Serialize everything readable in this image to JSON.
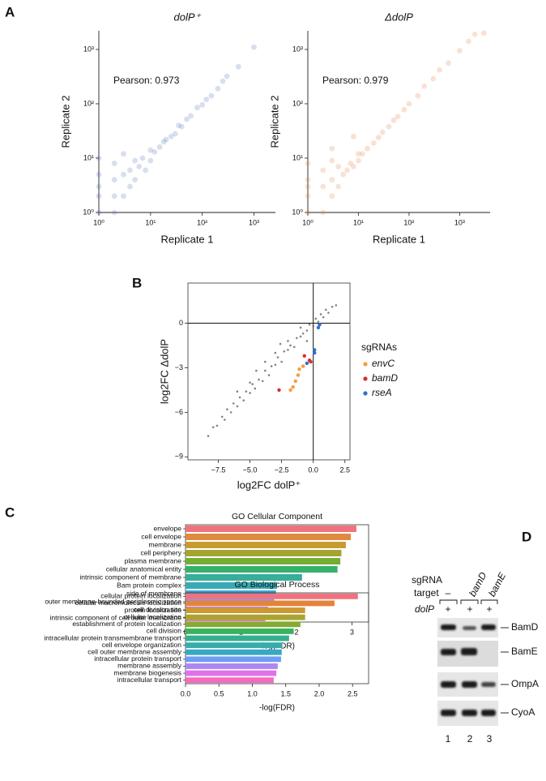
{
  "panel_labels": [
    "A",
    "B",
    "C",
    "D"
  ],
  "chart_data": [
    {
      "type": "scatter",
      "title": "dolP⁺",
      "xlabel": "Replicate 1",
      "ylabel": "Replicate 2",
      "annotation": "Pearson: 0.973",
      "color": "#4a6fb5",
      "log_x": true,
      "log_y": true,
      "xlim": [
        1,
        2600
      ],
      "ylim": [
        1,
        2200
      ],
      "xticks": [
        {
          "value": 1,
          "label": "10⁰"
        },
        {
          "value": 10,
          "label": "10¹"
        },
        {
          "value": 100,
          "label": "10²"
        },
        {
          "value": 1000,
          "label": "10³"
        }
      ],
      "yticks": [
        {
          "value": 1,
          "label": "10⁰"
        },
        {
          "value": 10,
          "label": "10¹"
        },
        {
          "value": 100,
          "label": "10²"
        },
        {
          "value": 1000,
          "label": "10³"
        }
      ],
      "x": [
        1,
        1,
        1,
        1,
        1,
        2,
        2,
        2,
        2,
        3,
        3,
        3,
        4,
        4,
        5,
        5,
        6,
        7,
        8,
        10,
        10,
        12,
        15,
        18,
        20,
        25,
        30,
        35,
        40,
        50,
        60,
        80,
        100,
        120,
        150,
        200,
        250,
        300,
        500,
        1000
      ],
      "values": [
        1,
        2,
        3,
        5,
        10,
        1,
        2,
        4,
        8,
        2,
        5,
        12,
        3,
        6,
        4,
        9,
        7,
        10,
        6,
        9,
        14,
        13,
        16,
        20,
        22,
        25,
        28,
        40,
        38,
        52,
        60,
        85,
        95,
        120,
        140,
        190,
        260,
        320,
        480,
        1100
      ]
    },
    {
      "type": "scatter",
      "title": "ΔdolP",
      "xlabel": "Replicate 1",
      "ylabel": "Replicate 2",
      "annotation": "Pearson: 0.979",
      "color": "#e07a3c",
      "log_x": true,
      "log_y": true,
      "xlim": [
        1,
        4000
      ],
      "ylim": [
        1,
        2200
      ],
      "xticks": [
        {
          "value": 1,
          "label": "10⁰"
        },
        {
          "value": 10,
          "label": "10¹"
        },
        {
          "value": 100,
          "label": "10²"
        },
        {
          "value": 1000,
          "label": "10³"
        }
      ],
      "yticks": [
        {
          "value": 1,
          "label": "10⁰"
        },
        {
          "value": 10,
          "label": "10¹"
        },
        {
          "value": 100,
          "label": "10²"
        },
        {
          "value": 1000,
          "label": "10³"
        }
      ],
      "x": [
        1,
        1,
        1,
        1,
        1,
        2,
        2,
        2,
        3,
        3,
        3,
        4,
        4,
        5,
        6,
        7,
        8,
        10,
        10,
        12,
        15,
        20,
        25,
        30,
        40,
        50,
        60,
        80,
        100,
        150,
        200,
        300,
        400,
        600,
        1000,
        1500,
        2000,
        3000,
        3,
        8
      ],
      "values": [
        1,
        2,
        3,
        4,
        8,
        1,
        3,
        6,
        2,
        4,
        9,
        3,
        7,
        5,
        6,
        8,
        7,
        9,
        12,
        12,
        15,
        19,
        24,
        30,
        38,
        50,
        58,
        78,
        100,
        140,
        210,
        290,
        420,
        560,
        950,
        1400,
        1900,
        2000,
        15,
        25
      ]
    },
    {
      "type": "scatter",
      "xlabel": "log2FC dolP⁺",
      "ylabel": "log2FC ΔdolP",
      "color": "#666666",
      "xlim": [
        -9.9,
        2.9
      ],
      "ylim": [
        -9.2,
        2.7
      ],
      "hline": 0,
      "vline": 0,
      "xticks": [
        {
          "value": -7.5,
          "label": "−7.5"
        },
        {
          "value": -5,
          "label": "−5.0"
        },
        {
          "value": -2.5,
          "label": "−2.5"
        },
        {
          "value": 0,
          "label": "0.0"
        },
        2.5
      ],
      "yticks": [
        0,
        {
          "value": -3,
          "label": "−3"
        },
        {
          "value": -6,
          "label": "−6"
        },
        {
          "value": -9,
          "label": "−9"
        }
      ],
      "x": [
        -8.3,
        -7.9,
        -7.6,
        -7.2,
        -7.0,
        -6.8,
        -6.5,
        -6.3,
        -6.0,
        -5.8,
        -5.5,
        -5.3,
        -5.0,
        -4.8,
        -4.6,
        -4.3,
        -4.0,
        -3.8,
        -3.5,
        -3.3,
        -3.0,
        -2.8,
        -2.5,
        -2.3,
        -2.0,
        -1.8,
        -1.5,
        -1.3,
        -1.0,
        -0.8,
        -0.5,
        -0.3,
        0.0,
        0.2,
        0.4,
        0.6,
        0.8,
        1.0,
        1.2,
        1.5,
        1.8,
        -6.0,
        -4.5,
        -3.0,
        -2.0,
        -1.0,
        -5.0,
        -3.8,
        -2.6,
        -0.5
      ],
      "values": [
        -7.6,
        -7.0,
        -6.9,
        -6.3,
        -6.5,
        -5.8,
        -6.0,
        -5.4,
        -5.6,
        -5.0,
        -5.2,
        -4.6,
        -4.7,
        -4.1,
        -4.4,
        -3.8,
        -3.9,
        -3.2,
        -3.5,
        -2.9,
        -2.8,
        -2.3,
        -2.6,
        -1.9,
        -1.8,
        -1.5,
        -1.6,
        -1.0,
        -0.9,
        -0.7,
        -0.5,
        -0.1,
        -0.2,
        0.3,
        0.1,
        0.6,
        0.4,
        0.9,
        0.7,
        1.1,
        1.2,
        -4.6,
        -3.2,
        -2.0,
        -1.2,
        -0.3,
        -4.0,
        -2.6,
        -1.4,
        -1.2
      ],
      "legend_title": "sgRNAs",
      "series": [
        {
          "name": "envC",
          "color": "#f39c3c",
          "x": [
            -1.1,
            -1.2,
            -1.4,
            -1.6,
            -1.8,
            -0.8
          ],
          "values": [
            -3.1,
            -3.5,
            -3.9,
            -4.3,
            -4.5,
            -2.9
          ]
        },
        {
          "name": "bamD",
          "color": "#d62f2f",
          "x": [
            -2.7,
            -0.7,
            -0.3,
            -0.2
          ],
          "values": [
            -4.5,
            -2.2,
            -2.5,
            -2.6
          ]
        },
        {
          "name": "rseA",
          "color": "#2f6fc9",
          "x": [
            0.5,
            0.4,
            0.1,
            0.1,
            -0.5
          ],
          "values": [
            -0.1,
            -0.3,
            -1.8,
            -2.0,
            -2.7
          ]
        }
      ]
    },
    {
      "type": "hbar",
      "title": "GO Cellular Component",
      "xlabel": "-log(FDR)",
      "xlim": [
        0,
        3.3
      ],
      "xticks": [
        0,
        1,
        2,
        3
      ],
      "categories": [
        "envelope",
        "cell envelope",
        "membrane",
        "cell periphery",
        "plasma membrane",
        "cellular anatomical entity",
        "intrinsic component of membrane",
        "Bam protein complex",
        "side of membrane",
        "outer membrane-bounded periplasmic space",
        "cell division site",
        "intrinsic component of cell outer membrane"
      ],
      "values": [
        3.08,
        2.98,
        2.89,
        2.81,
        2.79,
        2.74,
        2.1,
        1.65,
        1.63,
        1.6,
        1.49,
        1.44
      ],
      "colors": [
        "#f0727f",
        "#e08a3f",
        "#c89a32",
        "#a3a531",
        "#73ae33",
        "#35b16d",
        "#36ae99",
        "#38aab5",
        "#3ba5d1",
        "#8a99f0",
        "#c47ff2",
        "#ef6fd5"
      ]
    },
    {
      "type": "hbar",
      "title": "GO Biological Process",
      "xlabel": "-log(FDR)",
      "xlim": [
        0,
        2.74
      ],
      "xticks": [
        {
          "value": 0,
          "label": "0.0"
        },
        0.5,
        {
          "value": 1,
          "label": "1.0"
        },
        1.5,
        {
          "value": 2,
          "label": "2.0"
        },
        2.5
      ],
      "categories": [
        "cellular protein localization",
        "cellular macromolecule localization",
        "protein localization",
        "cellular localization",
        "establishment of protein localization",
        "cell division",
        "intracellular protein transmembrane transport",
        "cell envelope organization",
        "cell outer membrane assembly",
        "intracellular protein transport",
        "membrane assembly",
        "membrane biogenesis",
        "intracellular transport"
      ],
      "values": [
        2.58,
        2.23,
        1.79,
        1.79,
        1.72,
        1.62,
        1.55,
        1.45,
        1.44,
        1.43,
        1.38,
        1.36,
        1.32
      ],
      "colors": [
        "#f0727f",
        "#e3843a",
        "#cc9832",
        "#aba331",
        "#84ab32",
        "#3bb15c",
        "#36af8e",
        "#37acab",
        "#39a8c5",
        "#6f9ef1",
        "#ad87f3",
        "#df71e9",
        "#f36bbe"
      ]
    }
  ],
  "blot": {
    "row_label": [
      "sgRNA",
      "target"
    ],
    "targets": [
      "–",
      "bamD",
      "bamE"
    ],
    "condition": "dolP",
    "condition_values": [
      "+",
      "+",
      "+"
    ],
    "bands": [
      "BamD",
      "BamE",
      "OmpA",
      "CyoA"
    ],
    "lanes": [
      "1",
      "2",
      "3"
    ]
  }
}
